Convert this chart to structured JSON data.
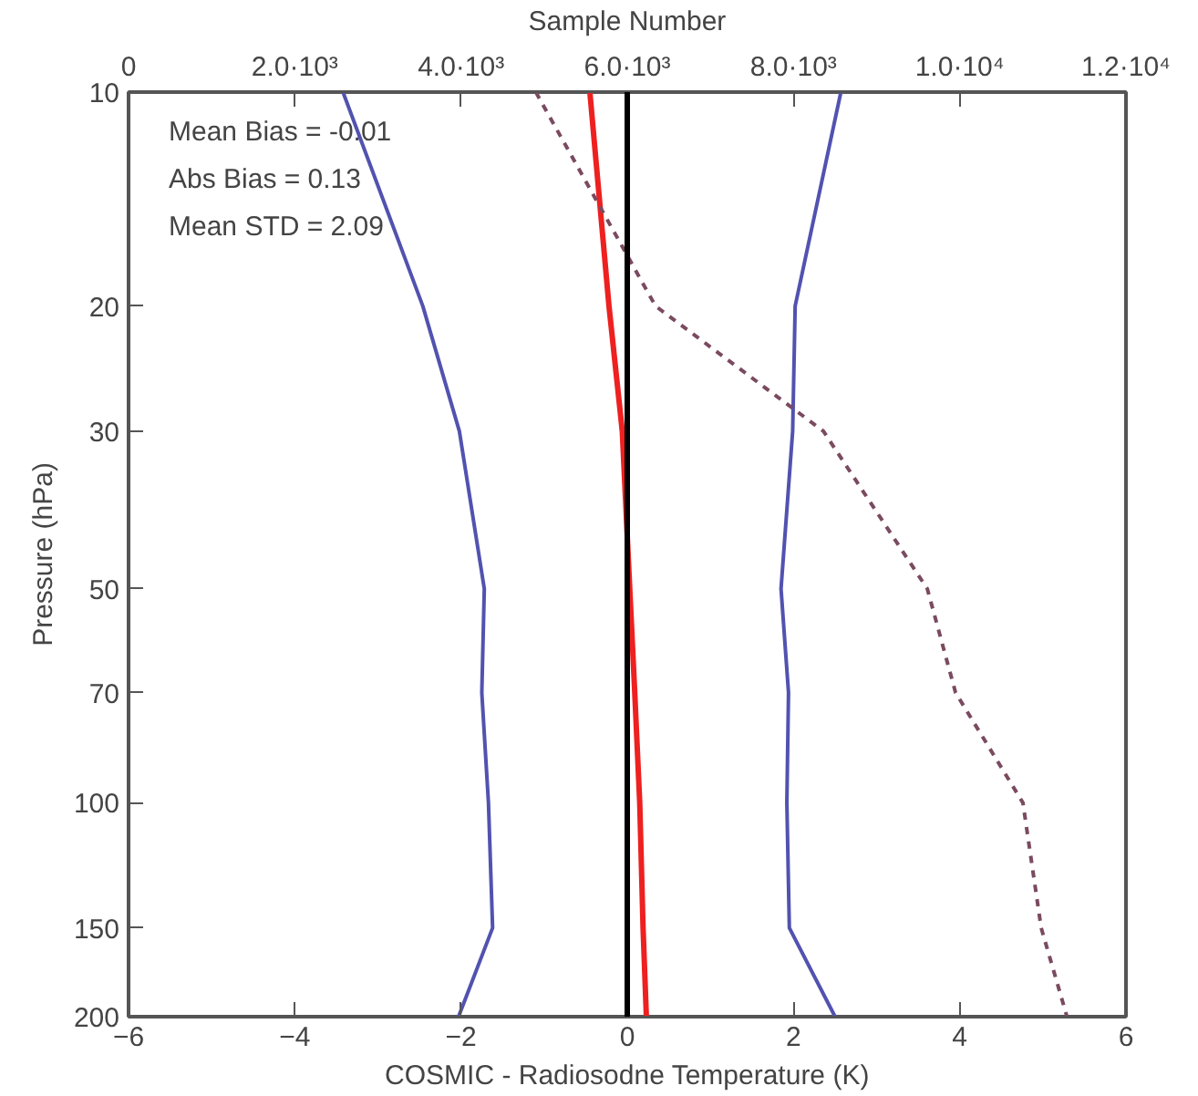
{
  "chart_data": {
    "type": "line",
    "xlabel": "COSMIC - Radiosodne Temperature (K)",
    "ylabel": "Pressure (hPa)",
    "x2label": "Sample Number",
    "xlim": [
      -6,
      6
    ],
    "xticks": [
      -6,
      -4,
      -2,
      0,
      2,
      4,
      6
    ],
    "x2lim": [
      0,
      12000
    ],
    "x2ticks": [
      0,
      {
        "value": 2000,
        "label": "2.0·10³"
      },
      {
        "value": 4000,
        "label": "4.0·10³"
      },
      {
        "value": 6000,
        "label": "6.0·10³"
      },
      {
        "value": 8000,
        "label": "8.0·10³"
      },
      {
        "value": 10000,
        "label": "1.0·10⁴"
      },
      {
        "value": 12000,
        "label": "1.2·10⁴"
      }
    ],
    "ylim": [
      200,
      10
    ],
    "yticks": [
      10,
      20,
      30,
      50,
      70,
      100,
      150,
      200
    ],
    "log": "y",
    "grid": false,
    "series": [
      {
        "color": "#5252b0",
        "x": [
          -3.42,
          -2.46,
          -2.02,
          -1.72,
          -1.75,
          -1.67,
          -1.62,
          -2.03
        ],
        "values": [
          10,
          20,
          30,
          50,
          70,
          100,
          150,
          200
        ]
      },
      {
        "color": "#5252b0",
        "x": [
          2.57,
          2.02,
          1.99,
          1.85,
          1.94,
          1.92,
          1.95,
          2.5
        ],
        "values": [
          10,
          20,
          30,
          50,
          70,
          100,
          150,
          200
        ]
      },
      {
        "color": "#ee2020",
        "x": [
          -0.45,
          -0.22,
          -0.06,
          0.03,
          0.09,
          0.15,
          0.19,
          0.23
        ],
        "values": [
          10,
          20,
          30,
          50,
          70,
          100,
          150,
          200
        ]
      },
      {
        "color": "#7a4a60",
        "axis": "x2",
        "line_style": "dashed",
        "x": [
          4900,
          6340,
          8360,
          9610,
          9950,
          10760,
          10980,
          11290
        ],
        "values": [
          10,
          20,
          30,
          50,
          70,
          100,
          150,
          200
        ]
      }
    ],
    "ref_lines": [
      {
        "axis": "x",
        "value": 0,
        "color": "#000000"
      }
    ],
    "annotations": [
      "Mean Bias =  -0.01",
      "Abs Bias  =  0.13",
      "Mean STD  =   2.09"
    ]
  }
}
